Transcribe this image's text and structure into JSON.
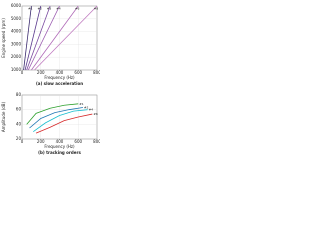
{
  "chart_data": [
    {
      "type": "line",
      "caption": "(a) slow acceleration",
      "xlabel": "Frequency (Hz)",
      "ylabel": "Engine speed (rpm)",
      "xlim": [
        0,
        800
      ],
      "ylim": [
        1000,
        6000
      ],
      "xticks": [
        0,
        200,
        400,
        600,
        800
      ],
      "yticks": [
        1000,
        2000,
        3000,
        4000,
        5000,
        6000
      ],
      "grid": true,
      "series": [
        {
          "name": "#1",
          "color": "#3b2a6e",
          "x": [
            17,
            100
          ],
          "values": [
            1000,
            6000
          ]
        },
        {
          "name": "#2",
          "color": "#5b3a8e",
          "x": [
            33,
            200
          ],
          "values": [
            1000,
            6000
          ]
        },
        {
          "name": "#3",
          "color": "#7a4aa0",
          "x": [
            50,
            300
          ],
          "values": [
            1000,
            6000
          ]
        },
        {
          "name": "#4",
          "color": "#9a5ab0",
          "x": [
            67,
            400
          ],
          "values": [
            1000,
            6000
          ]
        },
        {
          "name": "#6",
          "color": "#b06ab8",
          "x": [
            100,
            600
          ],
          "values": [
            1000,
            6000
          ]
        },
        {
          "name": "#8",
          "color": "#c07ac0",
          "x": [
            133,
            800
          ],
          "values": [
            1000,
            6000
          ]
        }
      ]
    },
    {
      "type": "line",
      "caption": "(b) tracking orders",
      "xlabel": "Frequency (Hz)",
      "ylabel": "Amplitude (dB)",
      "xlim": [
        0,
        800
      ],
      "ylim": [
        20,
        80
      ],
      "xticks": [
        0,
        200,
        400,
        600,
        800
      ],
      "yticks": [
        20,
        40,
        60,
        80
      ],
      "grid": true,
      "series": [
        {
          "name": "#1",
          "color": "#2ca02c",
          "x": [
            50,
            150,
            300,
            450,
            600
          ],
          "values": [
            40,
            55,
            62,
            66,
            68
          ]
        },
        {
          "name": "#2",
          "color": "#1f77b4",
          "x": [
            80,
            200,
            350,
            500,
            650
          ],
          "values": [
            35,
            48,
            56,
            60,
            63
          ]
        },
        {
          "name": "#4",
          "color": "#17becf",
          "x": [
            120,
            250,
            400,
            550,
            700
          ],
          "values": [
            30,
            42,
            52,
            58,
            60
          ]
        },
        {
          "name": "#6",
          "color": "#d62728",
          "x": [
            150,
            300,
            450,
            600,
            750
          ],
          "values": [
            28,
            36,
            45,
            50,
            54
          ]
        }
      ]
    }
  ]
}
